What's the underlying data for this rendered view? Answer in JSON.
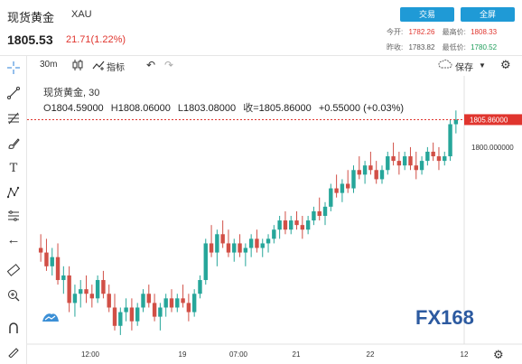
{
  "header": {
    "title": "现货黄金",
    "symbol": "XAU",
    "price": "1805.53",
    "change": "21.71(1.22%)",
    "trade_button": "交易",
    "fullscreen_button": "全屏",
    "today_open_label": "今开:",
    "today_open": "1782.26",
    "high_label": "最高价:",
    "high": "1808.33",
    "prev_close_label": "昨收:",
    "prev_close": "1783.82",
    "low_label": "最低价:",
    "low": "1780.52"
  },
  "toolbar": {
    "interval": "30m",
    "indicators_label": "指标",
    "save_label": "保存"
  },
  "legend": {
    "name": "现货黄金",
    "interval": "30",
    "o_label": "O",
    "o": "1804.59000",
    "h_label": "H",
    "h": "1808.06000",
    "l_label": "L",
    "l": "1803.08000",
    "c_label": "收=",
    "c": "1805.86000",
    "chg": "+0.55000 (+0.03%)"
  },
  "branding": {
    "logo": "FX168"
  },
  "colors": {
    "up": "#26a69a",
    "down": "#d14f46",
    "accent": "#1f9ad6",
    "price_line": "#e0352e"
  },
  "chart_data": {
    "type": "candlestick",
    "x_ticks": [
      "12:00",
      "19",
      "07:00",
      "21",
      "22",
      "12"
    ],
    "y_ticks": [
      "1800.000000"
    ],
    "last_price_label": "1805.86000",
    "ylim": [
      1758,
      1812
    ],
    "candles": [
      [
        1778,
        1781,
        1775,
        1777
      ],
      [
        1777,
        1780,
        1773,
        1774
      ],
      [
        1774,
        1778,
        1772,
        1776
      ],
      [
        1776,
        1779,
        1770,
        1771
      ],
      [
        1771,
        1774,
        1768,
        1772
      ],
      [
        1772,
        1774,
        1764,
        1766
      ],
      [
        1766,
        1770,
        1763,
        1768
      ],
      [
        1768,
        1771,
        1765,
        1769
      ],
      [
        1769,
        1772,
        1766,
        1768
      ],
      [
        1768,
        1770,
        1765,
        1767
      ],
      [
        1767,
        1772,
        1766,
        1771
      ],
      [
        1771,
        1773,
        1767,
        1768
      ],
      [
        1768,
        1770,
        1764,
        1765
      ],
      [
        1765,
        1768,
        1760,
        1761
      ],
      [
        1761,
        1765,
        1759,
        1764
      ],
      [
        1764,
        1767,
        1762,
        1765
      ],
      [
        1765,
        1767,
        1760,
        1762
      ],
      [
        1762,
        1766,
        1761,
        1765
      ],
      [
        1765,
        1769,
        1764,
        1768
      ],
      [
        1768,
        1770,
        1765,
        1766
      ],
      [
        1766,
        1768,
        1762,
        1763
      ],
      [
        1763,
        1766,
        1760,
        1765
      ],
      [
        1765,
        1768,
        1763,
        1767
      ],
      [
        1767,
        1769,
        1764,
        1765
      ],
      [
        1765,
        1768,
        1764,
        1767
      ],
      [
        1767,
        1770,
        1765,
        1766
      ],
      [
        1766,
        1768,
        1762,
        1764
      ],
      [
        1764,
        1769,
        1763,
        1768
      ],
      [
        1768,
        1772,
        1767,
        1771
      ],
      [
        1771,
        1780,
        1770,
        1779
      ],
      [
        1779,
        1783,
        1776,
        1777
      ],
      [
        1777,
        1782,
        1774,
        1781
      ],
      [
        1781,
        1784,
        1778,
        1779
      ],
      [
        1779,
        1782,
        1776,
        1777
      ],
      [
        1777,
        1780,
        1775,
        1779
      ],
      [
        1779,
        1781,
        1776,
        1777
      ],
      [
        1777,
        1779,
        1774,
        1778
      ],
      [
        1778,
        1781,
        1776,
        1780
      ],
      [
        1780,
        1782,
        1777,
        1778
      ],
      [
        1778,
        1780,
        1776,
        1779
      ],
      [
        1779,
        1781,
        1777,
        1780
      ],
      [
        1780,
        1783,
        1779,
        1782
      ],
      [
        1782,
        1785,
        1780,
        1784
      ],
      [
        1784,
        1786,
        1781,
        1782
      ],
      [
        1782,
        1785,
        1781,
        1784
      ],
      [
        1784,
        1786,
        1782,
        1783
      ],
      [
        1783,
        1785,
        1780,
        1782
      ],
      [
        1782,
        1785,
        1781,
        1784
      ],
      [
        1784,
        1787,
        1783,
        1786
      ],
      [
        1786,
        1789,
        1784,
        1785
      ],
      [
        1785,
        1788,
        1783,
        1787
      ],
      [
        1787,
        1792,
        1786,
        1791
      ],
      [
        1791,
        1794,
        1789,
        1790
      ],
      [
        1790,
        1793,
        1788,
        1792
      ],
      [
        1792,
        1795,
        1790,
        1791
      ],
      [
        1791,
        1796,
        1790,
        1795
      ],
      [
        1795,
        1798,
        1793,
        1794
      ],
      [
        1794,
        1797,
        1792,
        1796
      ],
      [
        1796,
        1799,
        1794,
        1795
      ],
      [
        1795,
        1797,
        1792,
        1793
      ],
      [
        1793,
        1796,
        1792,
        1795
      ],
      [
        1795,
        1799,
        1794,
        1798
      ],
      [
        1798,
        1801,
        1796,
        1797
      ],
      [
        1797,
        1799,
        1794,
        1796
      ],
      [
        1796,
        1799,
        1795,
        1798
      ],
      [
        1798,
        1800,
        1795,
        1796
      ],
      [
        1796,
        1799,
        1793,
        1795
      ],
      [
        1795,
        1798,
        1794,
        1797
      ],
      [
        1797,
        1800,
        1796,
        1799
      ],
      [
        1799,
        1801,
        1797,
        1798
      ],
      [
        1798,
        1800,
        1795,
        1797
      ],
      [
        1797,
        1799,
        1796,
        1798
      ],
      [
        1798,
        1806,
        1797,
        1805
      ],
      [
        1805,
        1808,
        1803,
        1806
      ]
    ]
  }
}
